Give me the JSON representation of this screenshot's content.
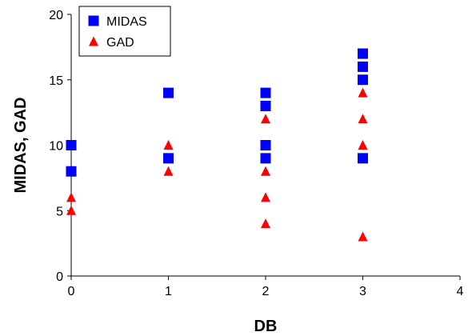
{
  "chart_data": {
    "type": "scatter",
    "title": "",
    "xlabel": "DB",
    "ylabel": "MIDAS, GAD",
    "xlim": [
      0,
      4
    ],
    "ylim": [
      0,
      20
    ],
    "xticks": [
      "0",
      "1",
      "2",
      "3",
      "4"
    ],
    "yticks": [
      "0",
      "5",
      "10",
      "15",
      "20"
    ],
    "grid": false,
    "legend_position": "top-left",
    "series": [
      {
        "name": "MIDAS",
        "marker": "square",
        "color": "#0000ff",
        "points": [
          {
            "x": 0,
            "y": 10
          },
          {
            "x": 0,
            "y": 8
          },
          {
            "x": 1,
            "y": 14
          },
          {
            "x": 1,
            "y": 9
          },
          {
            "x": 2,
            "y": 14
          },
          {
            "x": 2,
            "y": 13
          },
          {
            "x": 2,
            "y": 10
          },
          {
            "x": 2,
            "y": 9
          },
          {
            "x": 3,
            "y": 17
          },
          {
            "x": 3,
            "y": 16
          },
          {
            "x": 3,
            "y": 15
          },
          {
            "x": 3,
            "y": 9
          }
        ]
      },
      {
        "name": "GAD",
        "marker": "triangle",
        "color": "#ff0000",
        "points": [
          {
            "x": 0,
            "y": 6
          },
          {
            "x": 0,
            "y": 5
          },
          {
            "x": 1,
            "y": 10
          },
          {
            "x": 1,
            "y": 8
          },
          {
            "x": 2,
            "y": 12
          },
          {
            "x": 2,
            "y": 8
          },
          {
            "x": 2,
            "y": 6
          },
          {
            "x": 2,
            "y": 4
          },
          {
            "x": 3,
            "y": 14
          },
          {
            "x": 3,
            "y": 12
          },
          {
            "x": 3,
            "y": 10
          },
          {
            "x": 3,
            "y": 3
          }
        ]
      }
    ]
  }
}
